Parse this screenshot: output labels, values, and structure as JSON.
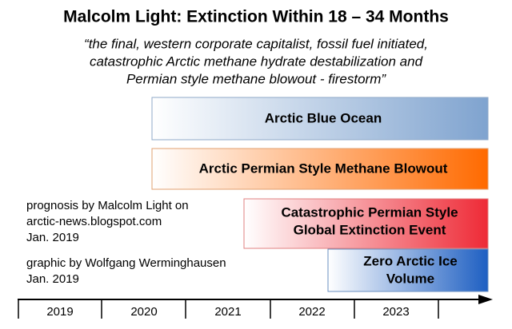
{
  "header": {
    "title": "Malcolm Light: Extinction Within 18 – 34 Months"
  },
  "quote": {
    "lines": [
      "“the final, western corporate capitalist, fossil fuel initiated,",
      "catastrophic Arctic methane hydrate destabilization and",
      "Permian style methane blowout - firestorm”"
    ]
  },
  "bars": [
    {
      "lines": [
        "Arctic Blue Ocean"
      ]
    },
    {
      "lines": [
        "Arctic Permian Style Methane Blowout"
      ]
    },
    {
      "lines": [
        "Catastrophic Permian Style",
        "Global Extinction Event"
      ]
    },
    {
      "lines": [
        "Zero Arctic Ice",
        "Volume"
      ]
    }
  ],
  "notes": [
    {
      "lines": [
        "prognosis by Malcolm Light on",
        "arctic-news.blogspot.com",
        "Jan. 2019"
      ]
    },
    {
      "lines": [
        "graphic by Wolfgang Werminghausen",
        "Jan. 2019"
      ]
    }
  ],
  "timeline": {
    "years": [
      "2019",
      "2020",
      "2021",
      "2022",
      "2023"
    ]
  }
}
